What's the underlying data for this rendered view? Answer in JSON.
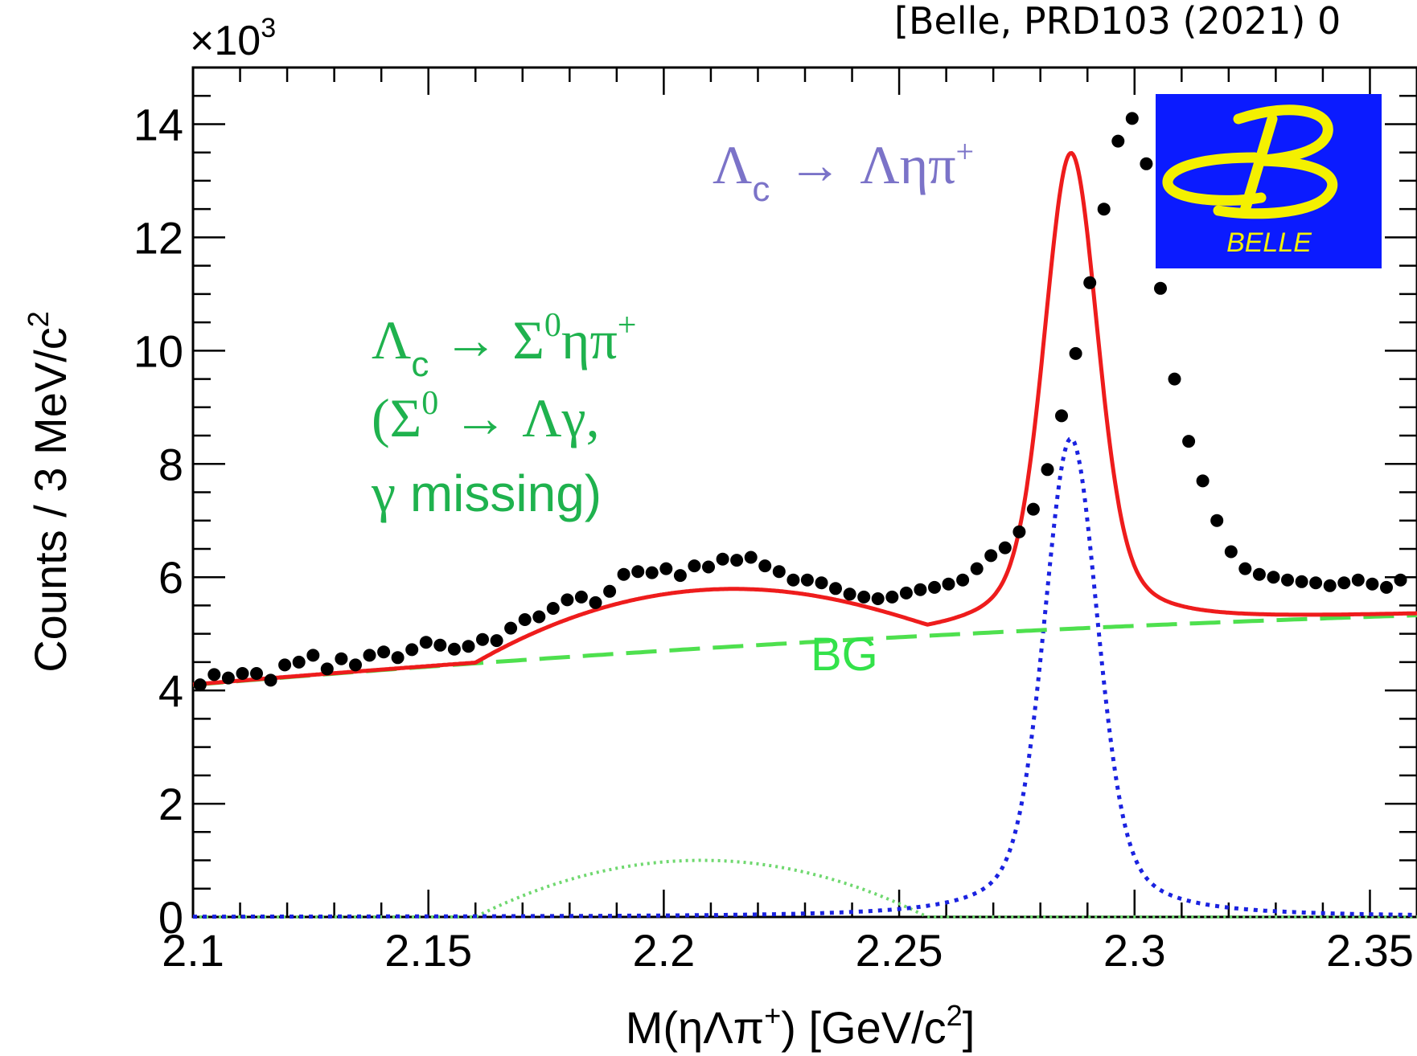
{
  "citation": "[Belle, PRD103 (2021) 0",
  "logo": {
    "text": "BELLE",
    "bg_color": "#0b1bff",
    "fg_color": "#f4f000"
  },
  "annotations": {
    "main_decay": {
      "lambda_c": "Λ",
      "sub_c": "c",
      "arrow": "→",
      "products": "Ληπ",
      "sup_plus": "+",
      "color": "#7b73c8"
    },
    "sigma_decay": {
      "line1_lambda": "Λ",
      "line1_sub": "c",
      "line1_arrow": "→",
      "line1_sigma": "Σ",
      "line1_sup0": "0",
      "line1_rest": "ηπ",
      "line1_sup_plus": "+",
      "line2_open": "(Σ",
      "line2_sup0": "0",
      "line2_arrow": "→",
      "line2_rest": "Λγ,",
      "line3_gamma": "γ",
      "line3_rest": " missing)",
      "color": "#1fb24e"
    },
    "bg_label": {
      "text": "BG",
      "color": "#33e24a"
    }
  },
  "chart_data": {
    "type": "line",
    "xlabel": {
      "main": "M(ηΛπ",
      "sup": "+",
      "close": ") [GeV/c",
      "sup2": "2",
      "end": "]"
    },
    "ylabel": {
      "main": "Counts / 3 MeV/c",
      "sup": "2"
    },
    "y_multiplier": {
      "base": "×10",
      "exp": "3"
    },
    "xlim": [
      2.1,
      2.36
    ],
    "ylim": [
      0,
      15
    ],
    "x_ticks": [
      "2.1",
      "2.15",
      "2.2",
      "2.25",
      "2.3",
      "2.35"
    ],
    "x_tick_values": [
      2.1,
      2.15,
      2.2,
      2.25,
      2.3,
      2.35
    ],
    "y_ticks": [
      "0",
      "2",
      "4",
      "6",
      "8",
      "10",
      "12",
      "14"
    ],
    "y_tick_values": [
      0,
      2,
      4,
      6,
      8,
      10,
      12,
      14
    ],
    "colors": {
      "total": "#ee1c1c",
      "signal": "#1a22e0",
      "bg": "#4ee04e",
      "sigma": "#6fd86f",
      "data": "#000000"
    },
    "series": [
      {
        "kind": "data",
        "x": [
          2.1015,
          2.1045,
          2.1075,
          2.1105,
          2.1135,
          2.1165,
          2.1195,
          2.1225,
          2.1255,
          2.1285,
          2.1315,
          2.1345,
          2.1375,
          2.1405,
          2.1435,
          2.1465,
          2.1495,
          2.1525,
          2.1555,
          2.1585,
          2.1615,
          2.1645,
          2.1675,
          2.1705,
          2.1735,
          2.1765,
          2.1795,
          2.1825,
          2.1855,
          2.1885,
          2.1915,
          2.1945,
          2.1975,
          2.2005,
          2.2035,
          2.2065,
          2.2095,
          2.2125,
          2.2155,
          2.2185,
          2.2215,
          2.2245,
          2.2275,
          2.2305,
          2.2335,
          2.2365,
          2.2395,
          2.2425,
          2.2455,
          2.2485,
          2.2515,
          2.2545,
          2.2575,
          2.2605,
          2.2635,
          2.2665,
          2.2695,
          2.2725,
          2.2755,
          2.2785,
          2.2815,
          2.2845,
          2.2875,
          2.2905,
          2.2935,
          2.2965,
          2.2995,
          2.3025,
          2.3055,
          2.3085,
          2.3115,
          2.3145,
          2.3175,
          2.3205,
          2.3235,
          2.3265,
          2.3295,
          2.3325,
          2.3355,
          2.3385,
          2.3415,
          2.3445,
          2.3475,
          2.3505,
          2.3535,
          2.3565
        ],
        "y": [
          4.1,
          4.28,
          4.22,
          4.3,
          4.3,
          4.18,
          4.45,
          4.5,
          4.62,
          4.38,
          4.56,
          4.45,
          4.62,
          4.68,
          4.58,
          4.72,
          4.85,
          4.8,
          4.73,
          4.78,
          4.9,
          4.88,
          5.1,
          5.25,
          5.3,
          5.45,
          5.6,
          5.65,
          5.55,
          5.75,
          6.05,
          6.1,
          6.08,
          6.15,
          6.03,
          6.2,
          6.18,
          6.32,
          6.3,
          6.35,
          6.2,
          6.1,
          5.95,
          5.95,
          5.9,
          5.8,
          5.7,
          5.65,
          5.62,
          5.65,
          5.72,
          5.78,
          5.82,
          5.88,
          5.95,
          6.15,
          6.38,
          6.52,
          6.8,
          7.2,
          7.9,
          8.85,
          9.95,
          11.2,
          12.5,
          13.7,
          14.1,
          13.3,
          11.1,
          9.5,
          8.4,
          7.7,
          7.0,
          6.45,
          6.15,
          6.05,
          6.0,
          5.95,
          5.92,
          5.9,
          5.85,
          5.9,
          5.95,
          5.88,
          5.82,
          5.95
        ]
      },
      {
        "kind": "total",
        "name": ""
      },
      {
        "kind": "signal",
        "name": ""
      },
      {
        "kind": "sigma",
        "name": ""
      },
      {
        "kind": "bg",
        "name": ""
      }
    ],
    "model": {
      "bg_line": {
        "y_at_2_1": 4.1,
        "slope_per_gev": 6.8,
        "curvature": -8.0
      },
      "signal_peak": {
        "mean": 2.2865,
        "amplitude": 8.45,
        "sigma": 0.0055,
        "tail": 0.35
      },
      "sigma_bump": {
        "mean": 2.208,
        "amplitude": 1.0,
        "half_width": 0.048
      },
      "total_peak_amplitude": 8.4
    }
  }
}
